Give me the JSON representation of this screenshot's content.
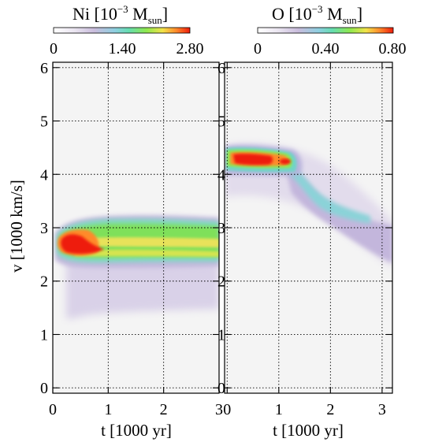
{
  "figure": {
    "left_panel": {
      "colorbar": {
        "element": "Ni",
        "exponent": "−3",
        "unit_base": "M",
        "unit_sub": "sun",
        "ticks": [
          "0",
          "1.40",
          "2.80"
        ]
      },
      "ylabel": "v [1000 km/s]",
      "xlabel": "t [1000 yr]"
    },
    "right_panel": {
      "colorbar": {
        "element": "O",
        "exponent": "−3",
        "unit_base": "M",
        "unit_sub": "sun",
        "ticks": [
          "0",
          "0.40",
          "0.80"
        ]
      },
      "xlabel": "t [1000 yr]"
    },
    "colormap": [
      "#ffffff",
      "#c9bcdc",
      "#8ecfe0",
      "#66ddb1",
      "#8ee84f",
      "#f2e34a",
      "#ff8a2b",
      "#ee1c0b"
    ]
  },
  "chart_data": [
    {
      "type": "heatmap",
      "quantity": "Ni",
      "xlabel": "t [1000 yr]",
      "ylabel": "v [1000 km/s]",
      "xlim": [
        0,
        3
      ],
      "ylim": [
        -0.1,
        6.1
      ],
      "x_ticks": [
        0,
        1,
        2,
        3
      ],
      "x_tick_labels": [
        "0",
        "1",
        "2",
        "3"
      ],
      "y_ticks": [
        0,
        1,
        2,
        3,
        4,
        5,
        6
      ],
      "y_tick_labels": [
        "0",
        "1",
        "2",
        "3",
        "4",
        "5",
        "6"
      ],
      "grid": true,
      "colorbar_range": [
        0,
        2.8
      ],
      "structures": [
        {
          "description": "main band",
          "t": [
            0.05,
            3.0
          ],
          "v_center": 2.6,
          "v_halfwidth": 0.35,
          "level": 1.6
        },
        {
          "description": "peak",
          "t": [
            0.1,
            0.65
          ],
          "v_center": 2.62,
          "v_halfwidth": 0.12,
          "level": 2.8
        },
        {
          "description": "faint halo",
          "t": [
            0.1,
            2.0
          ],
          "v_range": [
            1.35,
            2.2
          ],
          "level": 0.3
        }
      ]
    },
    {
      "type": "heatmap",
      "quantity": "O",
      "xlabel": "t [1000 yr]",
      "ylim": [
        -0.1,
        6.1
      ],
      "xlim": [
        -0.05,
        3.2
      ],
      "x_ticks": [
        0,
        1,
        2,
        3
      ],
      "x_tick_labels": [
        "0",
        "1",
        "2",
        "3"
      ],
      "y_ticks": [
        0,
        1,
        2,
        3,
        4,
        5,
        6
      ],
      "y_tick_labels": [
        "0",
        "1",
        "2",
        "3",
        "4",
        "5",
        "6"
      ],
      "grid": true,
      "colorbar_range": [
        0,
        0.8
      ],
      "structures": [
        {
          "description": "upper shell",
          "t": [
            0.0,
            1.3
          ],
          "v_center": 4.2,
          "v_halfwidth": 0.2,
          "level": 0.5
        },
        {
          "description": "peak",
          "t": [
            0.15,
            1.35
          ],
          "v_center": 4.22,
          "v_halfwidth": 0.09,
          "level": 0.8
        },
        {
          "description": "descending tail",
          "t": [
            1.3,
            3.2
          ],
          "v_start": 4.1,
          "v_end": 2.6,
          "level": 0.25
        }
      ]
    }
  ]
}
